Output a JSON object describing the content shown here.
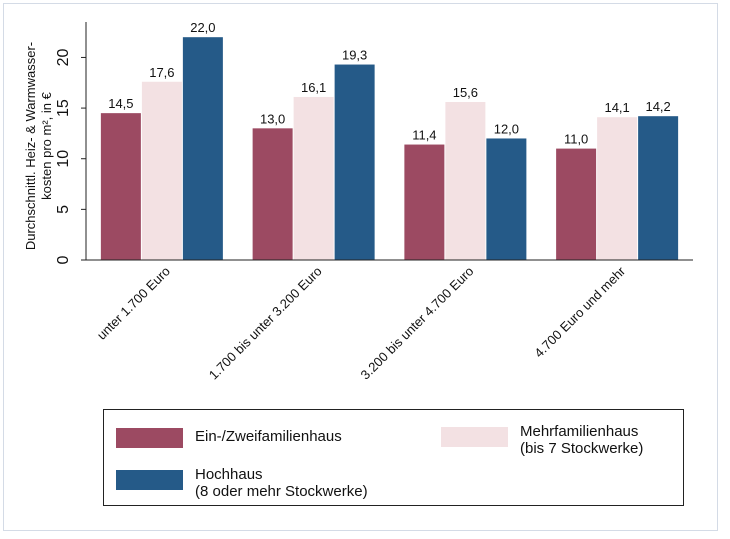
{
  "chart_data": {
    "type": "bar",
    "title": "",
    "ylabel_line1": "Durchschnittl. Heiz- & Warmwasser-",
    "ylabel_line2": "kosten pro m², in €",
    "ylim": [
      0,
      23.5
    ],
    "yticks": [
      "0",
      "5",
      "10",
      "15",
      "20"
    ],
    "ytick_values": [
      0,
      5,
      10,
      15,
      20
    ],
    "grid": false,
    "categories": [
      "unter 1.700 Euro",
      "1.700 bis unter 3.200 Euro",
      "3.200 bis unter 4.700 Euro",
      "4.700 Euro und mehr"
    ],
    "series": [
      {
        "name": "Ein-/Zweifamilienhaus",
        "color": "#9c4a62",
        "values": [
          14.5,
          13.0,
          11.4,
          11.0
        ],
        "labels": [
          "14,5",
          "13,0",
          "11,4",
          "11,0"
        ]
      },
      {
        "name": "Mehrfamilienhaus (bis 7 Stockwerke)",
        "color": "#f3e1e3",
        "values": [
          17.6,
          16.1,
          15.6,
          14.1
        ],
        "labels": [
          "17,6",
          "16,1",
          "15,6",
          "14,1"
        ]
      },
      {
        "name": "Hochhaus (8 oder mehr Stockwerke)",
        "color": "#255a88",
        "values": [
          22.0,
          19.3,
          12.0,
          14.2
        ],
        "labels": [
          "22,0",
          "19,3",
          "12,0",
          "14,2"
        ]
      }
    ],
    "legend": {
      "position": "bottom",
      "items": [
        {
          "line1": "Ein-/Zweifamilienhaus",
          "line2": "",
          "color": "#9c4a62"
        },
        {
          "line1": "Mehrfamilienhaus",
          "line2": "(bis 7 Stockwerke)",
          "color": "#f3e1e3"
        },
        {
          "line1": "Hochhaus",
          "line2": "(8 oder mehr Stockwerke)",
          "color": "#255a88"
        }
      ]
    }
  }
}
